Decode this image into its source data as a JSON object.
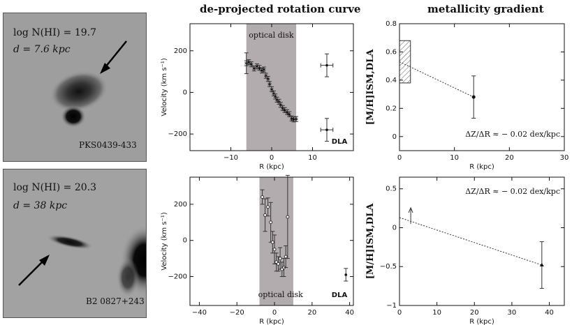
{
  "column_titles": {
    "rotation": "de-projected rotation curve",
    "metallicity": "metallicity gradient"
  },
  "panels": [
    {
      "image": {
        "line1": "log N(HI) = 19.7",
        "line2": "d = 7.6 kpc",
        "object": "PKS0439-433"
      },
      "rotation": {
        "shade_label": "optical disk",
        "dla_label": "DLA",
        "ylabel": "Velocity (km s⁻¹)",
        "xlabel": "R (kpc)"
      },
      "metallicity": {
        "ylabel": "[M/H]ISM,DLA",
        "xlabel": "R (kpc)",
        "gradient_label": "ΔZ/ΔR ≈ − 0.02 dex/kpc"
      }
    },
    {
      "image": {
        "line1": "log N(HI) = 20.3",
        "line2": "d = 38 kpc",
        "object": "B2 0827+243"
      },
      "rotation": {
        "shade_label": "optical disk",
        "dla_label": "DLA",
        "ylabel": "Velocity (km s⁻¹)",
        "xlabel": "R (kpc)"
      },
      "metallicity": {
        "ylabel": "[M/H]ISM,DLA",
        "xlabel": "R (kpc)",
        "gradient_label": "ΔZ/ΔR ≈ − 0.02 dex/kpc"
      }
    }
  ],
  "chart_data": [
    {
      "type": "scatter",
      "ylabel": "Velocity (km s⁻¹)",
      "xlabel": "R (kpc)",
      "xlim": [
        -20,
        20
      ],
      "ylim": [
        -280,
        330
      ],
      "xticks": [
        -10,
        0,
        10
      ],
      "yticks": [
        -200,
        0,
        200
      ],
      "shade": [
        -6.2,
        6.0
      ],
      "galaxy_points": [
        [
          -6.2,
          140
        ],
        [
          -5.6,
          145
        ],
        [
          -5.0,
          135
        ],
        [
          -4.3,
          115
        ],
        [
          -3.6,
          125
        ],
        [
          -3.0,
          118
        ],
        [
          -2.4,
          105
        ],
        [
          -1.9,
          110
        ],
        [
          -1.4,
          80
        ],
        [
          -0.9,
          65
        ],
        [
          -0.5,
          40
        ],
        [
          0.0,
          15
        ],
        [
          0.5,
          -5
        ],
        [
          0.9,
          -20
        ],
        [
          1.3,
          -35
        ],
        [
          1.8,
          -45
        ],
        [
          2.2,
          -60
        ],
        [
          2.7,
          -75
        ],
        [
          3.2,
          -85
        ],
        [
          3.8,
          -95
        ],
        [
          4.3,
          -105
        ],
        [
          4.9,
          -125
        ],
        [
          5.4,
          -130
        ],
        [
          6.0,
          -128
        ]
      ],
      "dla_points": [
        {
          "x": 13.5,
          "y": 130,
          "xerr": 1.5,
          "yerr": 55
        },
        {
          "x": 13.5,
          "y": -180,
          "xerr": 1.5,
          "yerr": 55
        }
      ]
    },
    {
      "type": "scatter",
      "ylabel": "[M/H]ISM,DLA",
      "xlabel": "R (kpc)",
      "xlim": [
        0,
        30
      ],
      "ylim": [
        -0.1,
        0.8
      ],
      "xticks": [
        0,
        10,
        20,
        30
      ],
      "yticks": [
        0,
        0.2,
        0.4,
        0.6,
        0.8
      ],
      "hatched_box": {
        "x": [
          0,
          2
        ],
        "y": [
          0.38,
          0.68
        ]
      },
      "dla_point": {
        "x": 13.5,
        "y": 0.28,
        "yerr": 0.15
      },
      "line": [
        [
          0,
          0.53
        ],
        [
          13.5,
          0.28
        ]
      ]
    },
    {
      "type": "scatter",
      "ylabel": "Velocity (km s⁻¹)",
      "xlabel": "R (kpc)",
      "xlim": [
        -45,
        42
      ],
      "ylim": [
        -360,
        350
      ],
      "xticks": [
        -40,
        -20,
        0,
        20,
        40
      ],
      "yticks": [
        -200,
        0,
        200
      ],
      "shade": [
        -8,
        10
      ],
      "galaxy_points": [
        {
          "x": -6.5,
          "y": 240,
          "yerr": 40
        },
        {
          "x": -5.0,
          "y": 140,
          "yerr": 90
        },
        {
          "x": -3.5,
          "y": 185,
          "yerr": 50
        },
        {
          "x": -2.0,
          "y": 100,
          "yerr": 110
        },
        {
          "x": -1.0,
          "y": -10,
          "yerr": 60
        },
        {
          "x": 0.0,
          "y": -50,
          "yerr": 80
        },
        {
          "x": 1.0,
          "y": -120,
          "yerr": 50
        },
        {
          "x": 2.0,
          "y": -130,
          "yerr": 40
        },
        {
          "x": 3.0,
          "y": -100,
          "yerr": 60
        },
        {
          "x": 4.0,
          "y": -160,
          "yerr": 40
        },
        {
          "x": 5.0,
          "y": -150,
          "yerr": 50
        },
        {
          "x": 6.0,
          "y": -90,
          "yerr": 60
        },
        {
          "x": 7.0,
          "y": 130,
          "yerr": 230
        }
      ],
      "dla_points": [
        {
          "x": 38,
          "y": -190,
          "xerr": 0,
          "yerr": 35
        }
      ]
    },
    {
      "type": "scatter",
      "ylabel": "[M/H]ISM,DLA",
      "xlabel": "R (kpc)",
      "xlim": [
        0,
        44
      ],
      "ylim": [
        -1.0,
        0.65
      ],
      "xticks": [
        0,
        10,
        20,
        30,
        40
      ],
      "yticks": [
        -1,
        -0.5,
        0,
        0.5
      ],
      "upper_limit": {
        "x": 3,
        "y": 0.05
      },
      "dla_point": {
        "x": 38,
        "y": -0.48,
        "yerr": 0.3
      },
      "line": [
        [
          0,
          0.13
        ],
        [
          38,
          -0.48
        ]
      ]
    }
  ]
}
